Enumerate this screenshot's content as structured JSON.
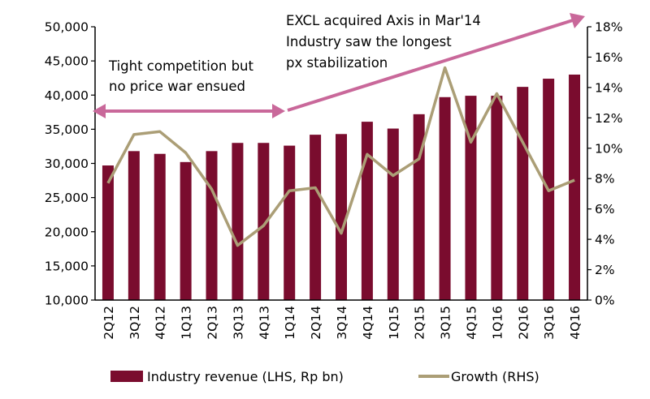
{
  "chart_data": {
    "type": "bar",
    "categories": [
      "2Q12",
      "3Q12",
      "4Q12",
      "1Q13",
      "2Q13",
      "3Q13",
      "4Q13",
      "1Q14",
      "2Q14",
      "3Q14",
      "4Q14",
      "1Q15",
      "2Q15",
      "3Q15",
      "4Q15",
      "1Q16",
      "2Q16",
      "3Q16",
      "4Q16"
    ],
    "series": [
      {
        "name": "Industry revenue (LHS, Rp bn)",
        "type": "bar",
        "axis": "left",
        "color": "#7a0c2e",
        "values": [
          29700,
          31800,
          31400,
          30200,
          31800,
          33000,
          33000,
          32600,
          34200,
          34300,
          36100,
          35100,
          37200,
          39700,
          39900,
          39900,
          41200,
          42400,
          43000
        ]
      },
      {
        "name": "Growth (RHS)",
        "type": "line",
        "axis": "right",
        "color": "#ab9e76",
        "values": [
          7.7,
          10.9,
          11.1,
          9.7,
          7.3,
          3.6,
          4.9,
          7.2,
          7.4,
          4.4,
          9.6,
          8.2,
          9.3,
          15.3,
          10.4,
          13.6,
          10.4,
          7.2,
          7.9
        ]
      }
    ],
    "ylim_left": [
      10000,
      50000
    ],
    "yticks_left": [
      "10,000",
      "15,000",
      "20,000",
      "25,000",
      "30,000",
      "35,000",
      "40,000",
      "45,000",
      "50,000"
    ],
    "ylim_right": [
      0,
      18
    ],
    "yticks_right": [
      "0%",
      "2%",
      "4%",
      "6%",
      "8%",
      "10%",
      "12%",
      "14%",
      "16%",
      "18%"
    ],
    "grid": false,
    "legend_position": "bottom",
    "annotations": {
      "left_lines": [
        "Tight competition but",
        "no price war ensued"
      ],
      "right_lines": [
        "EXCL acquired Axis in Mar'14",
        "Industry saw the longest",
        "px stabilization"
      ],
      "arrow_color": "#c9689a"
    }
  }
}
